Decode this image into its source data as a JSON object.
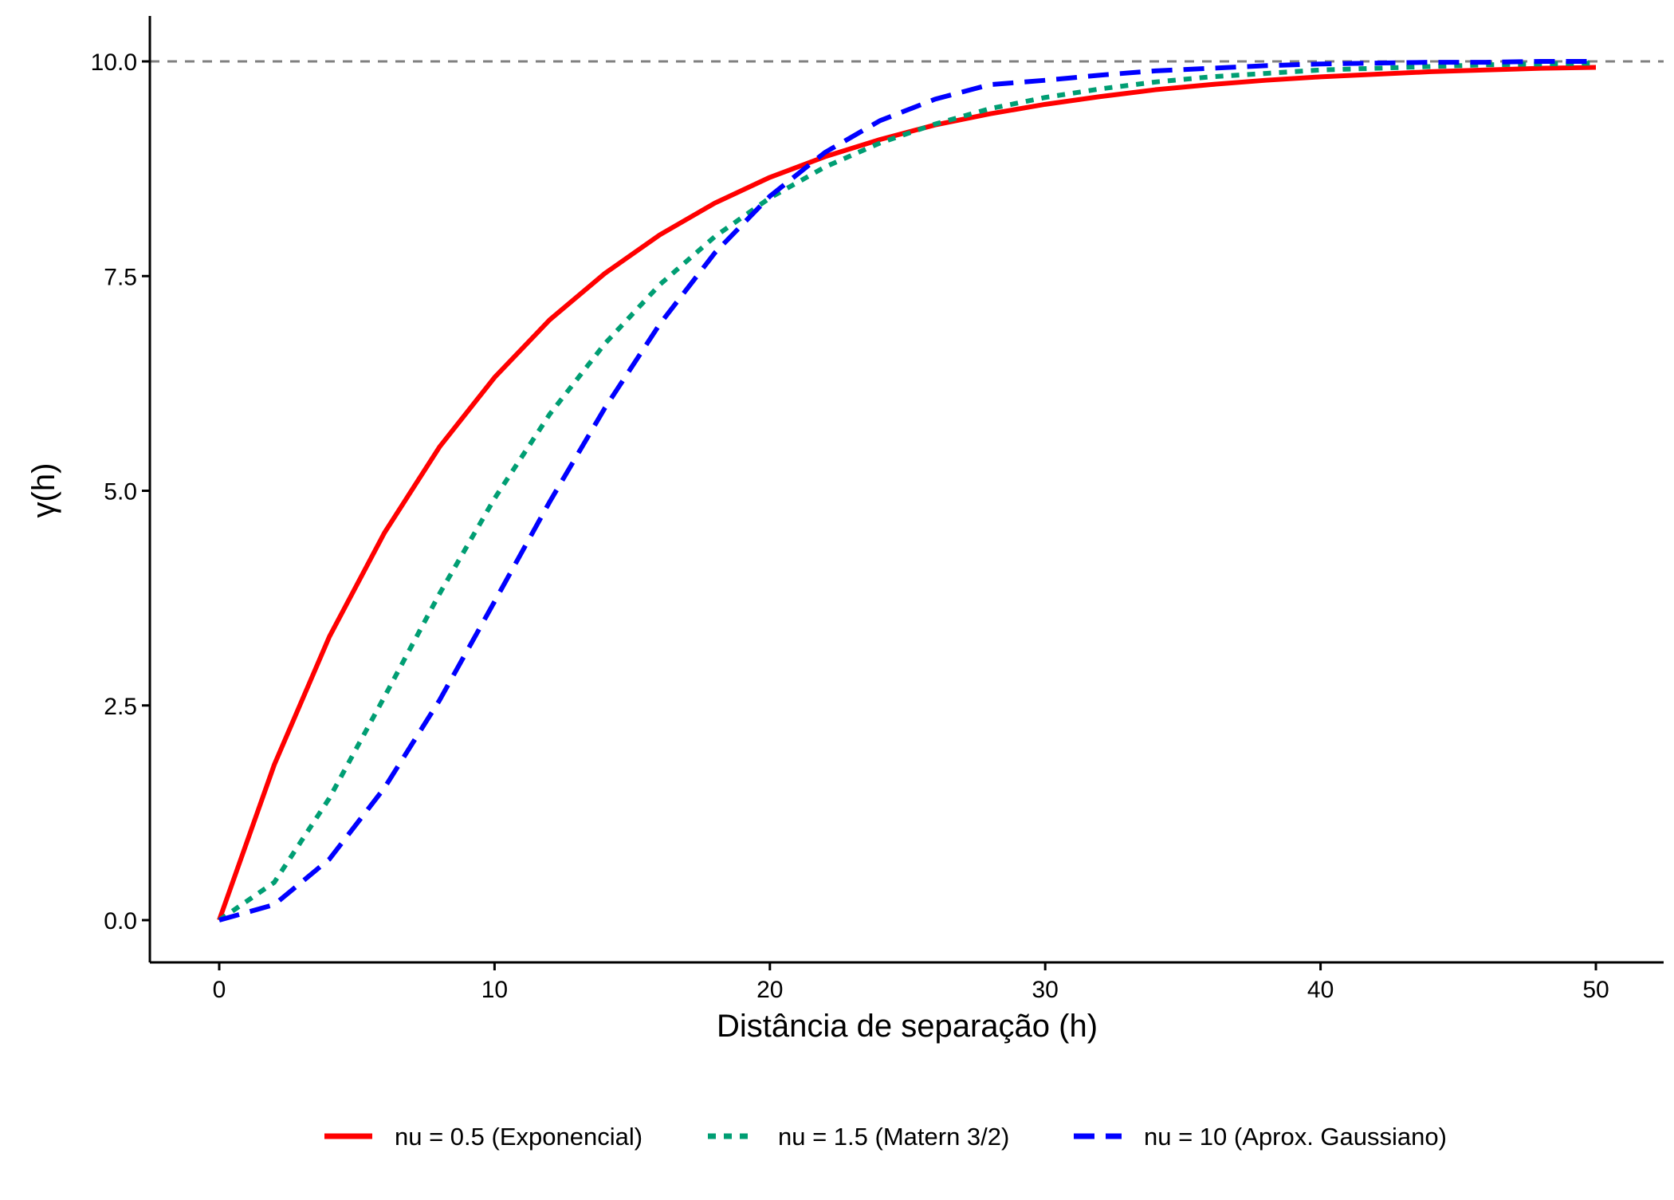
{
  "chart_data": {
    "type": "line",
    "title": "",
    "xlabel": "Distância de separação (h)",
    "ylabel": "γ(h)",
    "xlim": [
      -2.5,
      52.5
    ],
    "ylim": [
      -0.5,
      10.5
    ],
    "xticks": [
      0,
      10,
      20,
      30,
      40,
      50
    ],
    "xtick_labels": [
      "0",
      "10",
      "20",
      "30",
      "40",
      "50"
    ],
    "yticks": [
      0,
      2.5,
      5,
      7.5,
      10
    ],
    "ytick_labels": [
      "0.0",
      "2.5",
      "5.0",
      "7.5",
      "10.0"
    ],
    "grid": false,
    "legend_position": "bottom",
    "reference_line": {
      "y": 10,
      "color": "#808080",
      "style": "dashed"
    },
    "x": [
      0,
      2,
      4,
      6,
      8,
      10,
      12,
      14,
      16,
      18,
      20,
      22,
      24,
      26,
      28,
      30,
      32,
      34,
      36,
      38,
      40,
      42,
      44,
      46,
      48,
      50
    ],
    "series": [
      {
        "name": "nu = 0.5 (Exponencial)",
        "color": "#FF0000",
        "dash": "solid",
        "values": [
          0,
          1.81,
          3.3,
          4.51,
          5.51,
          6.32,
          6.99,
          7.53,
          7.98,
          8.35,
          8.65,
          8.89,
          9.09,
          9.26,
          9.39,
          9.5,
          9.59,
          9.67,
          9.73,
          9.78,
          9.82,
          9.85,
          9.88,
          9.9,
          9.92,
          9.93
        ]
      },
      {
        "name": "nu = 1.5 (Matern 3/2)",
        "color": "#009E73",
        "dash": "dotted",
        "values": [
          0,
          0.44,
          1.42,
          2.6,
          3.8,
          4.91,
          5.89,
          6.71,
          7.4,
          7.96,
          8.41,
          8.77,
          9.05,
          9.27,
          9.45,
          9.58,
          9.68,
          9.76,
          9.82,
          9.86,
          9.9,
          9.92,
          9.94,
          9.96,
          9.97,
          9.98
        ]
      },
      {
        "name": "nu = 10 (Aprox. Gaussiano)",
        "color": "#0000FF",
        "dash": "dashed",
        "values": [
          0,
          0.18,
          0.71,
          1.54,
          2.56,
          3.71,
          4.87,
          5.96,
          6.94,
          7.77,
          8.43,
          8.94,
          9.31,
          9.56,
          9.73,
          9.78,
          9.84,
          9.89,
          9.92,
          9.95,
          9.97,
          9.98,
          9.99,
          9.99,
          10.0,
          10.0
        ]
      }
    ]
  }
}
